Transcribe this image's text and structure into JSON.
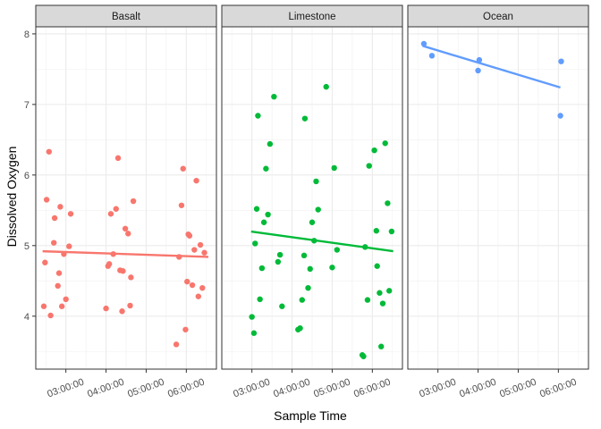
{
  "chart_data": {
    "type": "scatter",
    "xlabel": "Sample Time",
    "ylabel": "Dissolved Oxygen",
    "x_unit": "hours",
    "xlim": [
      2.25,
      6.75
    ],
    "ylim": [
      3.25,
      8.1
    ],
    "x_ticks": [
      {
        "value": 3,
        "label": "03:00:00"
      },
      {
        "value": 4,
        "label": "04:00:00"
      },
      {
        "value": 5,
        "label": "05:00:00"
      },
      {
        "value": 6,
        "label": "06:00:00"
      }
    ],
    "y_ticks": [
      {
        "value": 4,
        "label": "4"
      },
      {
        "value": 5,
        "label": "5"
      },
      {
        "value": 6,
        "label": "6"
      },
      {
        "value": 7,
        "label": "7"
      },
      {
        "value": 8,
        "label": "8"
      }
    ],
    "grid": true,
    "legend": "none",
    "panels": [
      {
        "name": "Basalt",
        "color": "#F8766D",
        "trend": {
          "x": [
            2.42,
            6.55
          ],
          "y": [
            4.92,
            4.84
          ]
        },
        "points": [
          [
            2.45,
            4.14
          ],
          [
            2.48,
            4.76
          ],
          [
            2.52,
            5.65
          ],
          [
            2.58,
            6.33
          ],
          [
            2.62,
            4.01
          ],
          [
            2.7,
            5.04
          ],
          [
            2.72,
            5.39
          ],
          [
            2.8,
            4.43
          ],
          [
            2.83,
            4.61
          ],
          [
            2.86,
            5.55
          ],
          [
            2.9,
            4.14
          ],
          [
            2.95,
            4.88
          ],
          [
            3.0,
            4.24
          ],
          [
            3.08,
            4.99
          ],
          [
            3.12,
            5.45
          ],
          [
            4.0,
            4.11
          ],
          [
            4.05,
            4.71
          ],
          [
            4.08,
            4.74
          ],
          [
            4.12,
            5.45
          ],
          [
            4.18,
            4.88
          ],
          [
            4.25,
            5.52
          ],
          [
            4.3,
            6.24
          ],
          [
            4.35,
            4.65
          ],
          [
            4.4,
            4.07
          ],
          [
            4.42,
            4.64
          ],
          [
            4.48,
            5.24
          ],
          [
            4.55,
            5.17
          ],
          [
            4.6,
            4.15
          ],
          [
            4.62,
            4.55
          ],
          [
            4.68,
            5.63
          ],
          [
            5.75,
            3.6
          ],
          [
            5.82,
            4.84
          ],
          [
            5.88,
            5.57
          ],
          [
            5.92,
            6.09
          ],
          [
            5.98,
            3.81
          ],
          [
            6.02,
            4.49
          ],
          [
            6.05,
            5.16
          ],
          [
            6.08,
            5.14
          ],
          [
            6.15,
            4.44
          ],
          [
            6.2,
            4.94
          ],
          [
            6.25,
            5.92
          ],
          [
            6.3,
            4.28
          ],
          [
            6.35,
            5.01
          ],
          [
            6.4,
            4.4
          ],
          [
            6.45,
            4.9
          ]
        ]
      },
      {
        "name": "Limestone",
        "color": "#00BA38",
        "trend": {
          "x": [
            2.98,
            6.52
          ],
          "y": [
            5.2,
            4.92
          ]
        },
        "points": [
          [
            3.0,
            3.99
          ],
          [
            3.05,
            3.76
          ],
          [
            3.08,
            5.03
          ],
          [
            3.12,
            5.52
          ],
          [
            3.15,
            6.84
          ],
          [
            3.2,
            4.24
          ],
          [
            3.25,
            4.68
          ],
          [
            3.3,
            5.33
          ],
          [
            3.35,
            6.09
          ],
          [
            3.4,
            5.44
          ],
          [
            3.45,
            6.44
          ],
          [
            3.55,
            7.11
          ],
          [
            3.65,
            4.77
          ],
          [
            3.7,
            4.87
          ],
          [
            3.75,
            4.14
          ],
          [
            4.15,
            3.81
          ],
          [
            4.2,
            3.83
          ],
          [
            4.25,
            4.23
          ],
          [
            4.3,
            4.86
          ],
          [
            4.32,
            6.8
          ],
          [
            4.4,
            4.4
          ],
          [
            4.45,
            4.67
          ],
          [
            4.5,
            5.33
          ],
          [
            4.55,
            5.07
          ],
          [
            4.6,
            5.91
          ],
          [
            4.65,
            5.51
          ],
          [
            4.85,
            7.25
          ],
          [
            5.0,
            4.69
          ],
          [
            5.05,
            6.1
          ],
          [
            5.12,
            4.94
          ],
          [
            5.75,
            3.45
          ],
          [
            5.78,
            3.43
          ],
          [
            5.82,
            4.98
          ],
          [
            5.88,
            4.23
          ],
          [
            5.92,
            6.13
          ],
          [
            6.05,
            6.35
          ],
          [
            6.1,
            5.21
          ],
          [
            6.12,
            4.71
          ],
          [
            6.18,
            4.33
          ],
          [
            6.22,
            3.57
          ],
          [
            6.26,
            4.18
          ],
          [
            6.32,
            6.45
          ],
          [
            6.38,
            5.6
          ],
          [
            6.42,
            4.36
          ],
          [
            6.48,
            5.2
          ]
        ]
      },
      {
        "name": "Ocean",
        "color": "#619CFF",
        "trend": {
          "x": [
            2.62,
            6.05
          ],
          "y": [
            7.83,
            7.24
          ]
        },
        "points": [
          [
            2.65,
            7.86
          ],
          [
            2.85,
            7.69
          ],
          [
            4.0,
            7.48
          ],
          [
            4.03,
            7.63
          ],
          [
            6.05,
            6.84
          ],
          [
            6.07,
            7.61
          ]
        ]
      }
    ]
  }
}
